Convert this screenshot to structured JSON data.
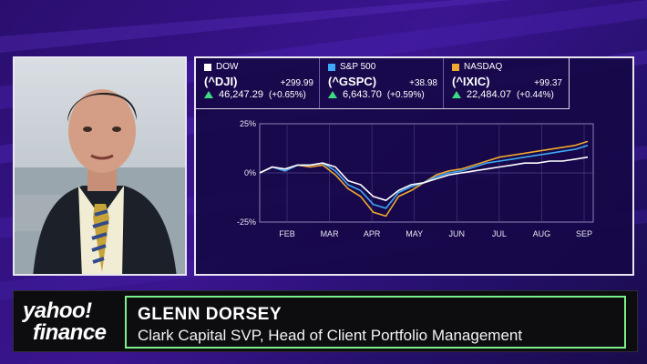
{
  "tickers": [
    {
      "index": "DOW",
      "symbol": "(^DJI)",
      "price": "46,247.29",
      "change": "+299.99",
      "pct": "(+0.65%)",
      "color": "#ffffff"
    },
    {
      "index": "S&P 500",
      "symbol": "(^GSPC)",
      "price": "6,643.70",
      "change": "+38.98",
      "pct": "(+0.59%)",
      "color": "#3fa9f5"
    },
    {
      "index": "NASDAQ",
      "symbol": "(^IXIC)",
      "price": "22,484.07",
      "change": "+99.37",
      "pct": "(+0.44%)",
      "color": "#f0a830"
    }
  ],
  "chart_data": {
    "type": "line",
    "ylim": [
      -25,
      25
    ],
    "y_ticks": [
      "25%",
      "0%",
      "-25%"
    ],
    "x_ticks": [
      "FEB",
      "MAR",
      "APR",
      "MAY",
      "JUN",
      "JUL",
      "AUG",
      "SEP"
    ],
    "series": [
      {
        "name": "DOW",
        "color": "#ffffff",
        "values": [
          0,
          3,
          2,
          4,
          4,
          5,
          3,
          -4,
          -6,
          -12,
          -14,
          -9,
          -6,
          -5,
          -3,
          -1,
          0,
          1,
          2,
          3,
          4,
          5,
          5,
          6,
          6,
          7,
          8
        ]
      },
      {
        "name": "S&P 500",
        "color": "#3fa9f5",
        "values": [
          0,
          3,
          1,
          4,
          4,
          5,
          1,
          -6,
          -9,
          -16,
          -18,
          -10,
          -7,
          -5,
          -2,
          0,
          1,
          3,
          5,
          6,
          7,
          8,
          9,
          10,
          11,
          12,
          14
        ]
      },
      {
        "name": "NASDAQ",
        "color": "#f0a830",
        "values": [
          0,
          3,
          1,
          4,
          3,
          4,
          -1,
          -8,
          -12,
          -20,
          -22,
          -12,
          -9,
          -5,
          -1,
          1,
          2,
          4,
          6,
          8,
          9,
          10,
          11,
          12,
          13,
          14,
          16
        ]
      }
    ]
  },
  "lower_third": {
    "logo_line1": "yahoo!",
    "logo_line2": "finance",
    "name": "GLENN DORSEY",
    "title": "Clark Capital SVP, Head of Client Portfolio Management"
  }
}
